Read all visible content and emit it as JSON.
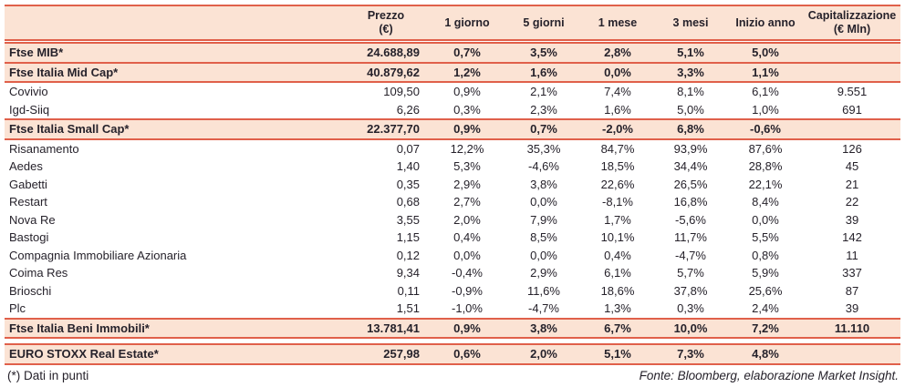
{
  "colors": {
    "accent": "#e0604a",
    "highlight": "#fbe3d4",
    "text": "#26222b"
  },
  "table": {
    "headers": [
      "",
      "Prezzo\n(€)",
      "1 giorno",
      "5 giorni",
      "1 mese",
      "3 mesi",
      "Inizio anno",
      "Capitalizzazione\n(€ Mln)"
    ],
    "rows": [
      {
        "type": "index",
        "name": "Ftse MIB*",
        "prezzo": "24.688,89",
        "d1": "0,7%",
        "d5": "3,5%",
        "m1": "2,8%",
        "m3": "5,1%",
        "ytd": "5,0%",
        "cap": ""
      },
      {
        "type": "index",
        "name": "Ftse Italia Mid Cap*",
        "prezzo": "40.879,62",
        "d1": "1,2%",
        "d5": "1,6%",
        "m1": "0,0%",
        "m3": "3,3%",
        "ytd": "1,1%",
        "cap": ""
      },
      {
        "type": "stock",
        "name": "Covivio",
        "prezzo": "109,50",
        "d1": "0,9%",
        "d5": "2,1%",
        "m1": "7,4%",
        "m3": "8,1%",
        "ytd": "6,1%",
        "cap": "9.551"
      },
      {
        "type": "stock",
        "name": "Igd-Siiq",
        "prezzo": "6,26",
        "d1": "0,3%",
        "d5": "2,3%",
        "m1": "1,6%",
        "m3": "5,0%",
        "ytd": "1,0%",
        "cap": "691"
      },
      {
        "type": "index",
        "name": "Ftse Italia Small Cap*",
        "prezzo": "22.377,70",
        "d1": "0,9%",
        "d5": "0,7%",
        "m1": "-2,0%",
        "m3": "6,8%",
        "ytd": "-0,6%",
        "cap": ""
      },
      {
        "type": "stock",
        "name": "Risanamento",
        "prezzo": "0,07",
        "d1": "12,2%",
        "d5": "35,3%",
        "m1": "84,7%",
        "m3": "93,9%",
        "ytd": "87,6%",
        "cap": "126"
      },
      {
        "type": "stock",
        "name": "Aedes",
        "prezzo": "1,40",
        "d1": "5,3%",
        "d5": "-4,6%",
        "m1": "18,5%",
        "m3": "34,4%",
        "ytd": "28,8%",
        "cap": "45"
      },
      {
        "type": "stock",
        "name": "Gabetti",
        "prezzo": "0,35",
        "d1": "2,9%",
        "d5": "3,8%",
        "m1": "22,6%",
        "m3": "26,5%",
        "ytd": "22,1%",
        "cap": "21"
      },
      {
        "type": "stock",
        "name": "Restart",
        "prezzo": "0,68",
        "d1": "2,7%",
        "d5": "0,0%",
        "m1": "-8,1%",
        "m3": "16,8%",
        "ytd": "8,4%",
        "cap": "22"
      },
      {
        "type": "stock",
        "name": "Nova Re",
        "prezzo": "3,55",
        "d1": "2,0%",
        "d5": "7,9%",
        "m1": "1,7%",
        "m3": "-5,6%",
        "ytd": "0,0%",
        "cap": "39"
      },
      {
        "type": "stock",
        "name": "Bastogi",
        "prezzo": "1,15",
        "d1": "0,4%",
        "d5": "8,5%",
        "m1": "10,1%",
        "m3": "11,7%",
        "ytd": "5,5%",
        "cap": "142"
      },
      {
        "type": "stock",
        "name": "Compagnia Immobiliare Azionaria",
        "prezzo": "0,12",
        "d1": "0,0%",
        "d5": "0,0%",
        "m1": "0,4%",
        "m3": "-4,7%",
        "ytd": "0,8%",
        "cap": "11"
      },
      {
        "type": "stock",
        "name": "Coima Res",
        "prezzo": "9,34",
        "d1": "-0,4%",
        "d5": "2,9%",
        "m1": "6,1%",
        "m3": "5,7%",
        "ytd": "5,9%",
        "cap": "337"
      },
      {
        "type": "stock",
        "name": "Brioschi",
        "prezzo": "0,11",
        "d1": "-0,9%",
        "d5": "11,6%",
        "m1": "18,6%",
        "m3": "37,8%",
        "ytd": "25,6%",
        "cap": "87"
      },
      {
        "type": "stock",
        "name": "Plc",
        "prezzo": "1,51",
        "d1": "-1,0%",
        "d5": "-4,7%",
        "m1": "1,3%",
        "m3": "0,3%",
        "ytd": "2,4%",
        "cap": "39"
      },
      {
        "type": "index",
        "name": "Ftse Italia Beni Immobili*",
        "prezzo": "13.781,41",
        "d1": "0,9%",
        "d5": "3,8%",
        "m1": "6,7%",
        "m3": "10,0%",
        "ytd": "7,2%",
        "cap": "11.110"
      },
      {
        "type": "gap"
      },
      {
        "type": "index",
        "name": "EURO STOXX Real Estate*",
        "prezzo": "257,98",
        "d1": "0,6%",
        "d5": "2,0%",
        "m1": "5,1%",
        "m3": "7,3%",
        "ytd": "4,8%",
        "cap": ""
      }
    ]
  },
  "footer": {
    "note": "(*) Dati in punti",
    "source": "Fonte: Bloomberg, elaborazione Market Insight."
  }
}
